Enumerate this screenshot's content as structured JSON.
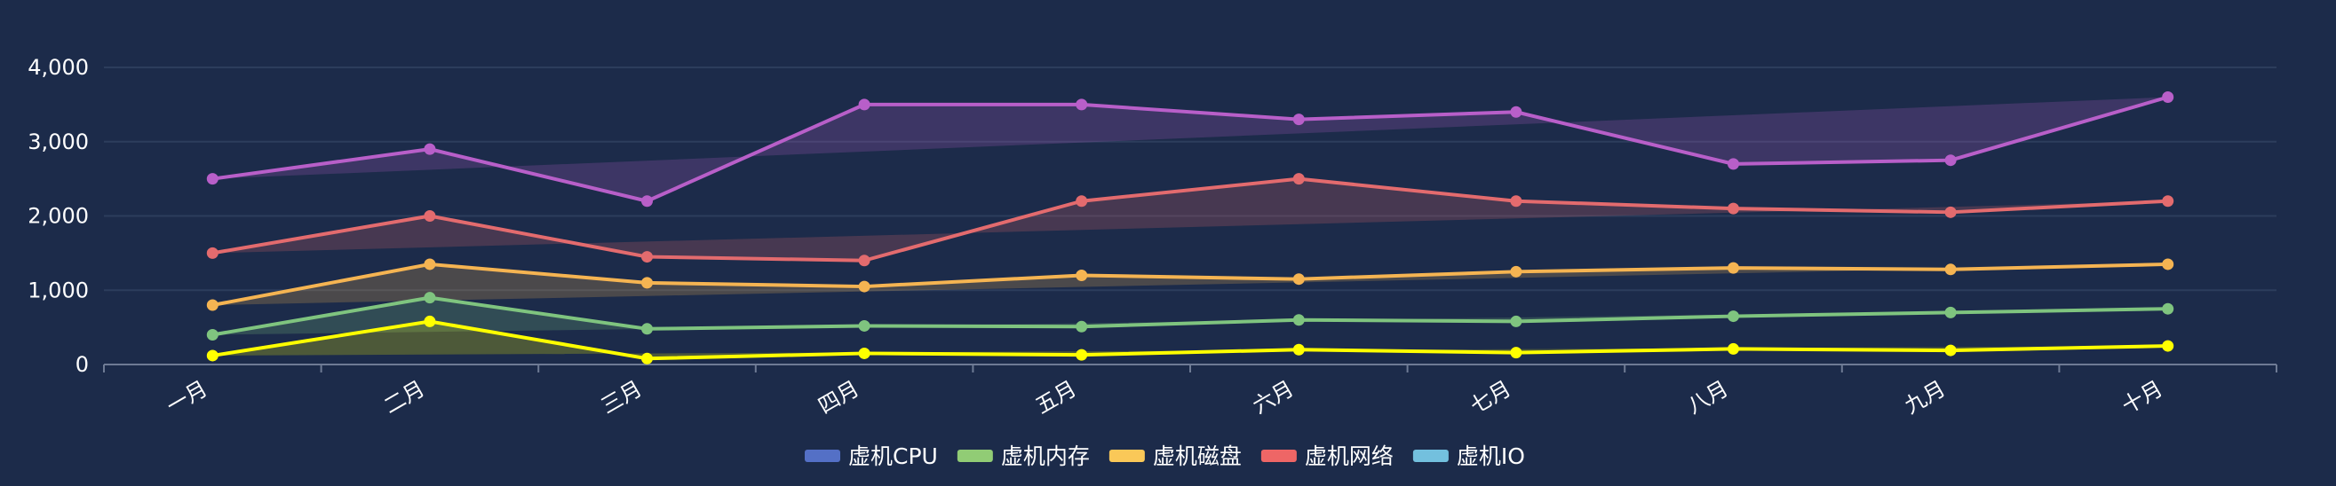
{
  "chart_data": {
    "type": "line",
    "categories": [
      "一月",
      "二月",
      "三月",
      "四月",
      "五月",
      "六月",
      "七月",
      "八月",
      "九月",
      "十月"
    ],
    "ylim": [
      0,
      4000
    ],
    "yticks": [
      0,
      1000,
      2000,
      3000,
      4000
    ],
    "ytick_labels": [
      "0",
      "1,000",
      "2,000",
      "3,000",
      "4,000"
    ],
    "grid": true,
    "legend_position": "bottom-center",
    "series": [
      {
        "name": "虚机CPU",
        "legend_color": "#5470c6",
        "line_color": "#5470c6",
        "values": null
      },
      {
        "name": "虚机内存",
        "legend_color": "#91cc75",
        "line_color": "#7fc47f",
        "values": [
          400,
          900,
          480,
          520,
          510,
          600,
          580,
          650,
          700,
          750
        ]
      },
      {
        "name": "虚机磁盘",
        "legend_color": "#fac858",
        "line_color": "#f5b452",
        "values": [
          800,
          1350,
          1100,
          1050,
          1200,
          1150,
          1250,
          1300,
          1280,
          1350
        ]
      },
      {
        "name": "虚机网络",
        "legend_color": "#ee6666",
        "line_color": "#e36b6e",
        "values": [
          1500,
          2000,
          1450,
          1400,
          2200,
          2500,
          2200,
          2100,
          2050,
          2200
        ]
      },
      {
        "name": "虚机IO",
        "legend_color": "#73c0de",
        "line_color": "#73c0de",
        "values": null
      }
    ],
    "extra_lines": [
      {
        "line_color": "#ffff00",
        "values": [
          120,
          580,
          80,
          150,
          130,
          200,
          160,
          210,
          190,
          250
        ]
      },
      {
        "line_color": "#b85fc9",
        "values": [
          2500,
          2900,
          2200,
          3500,
          3500,
          3300,
          3400,
          2700,
          2750,
          3600
        ]
      }
    ]
  }
}
